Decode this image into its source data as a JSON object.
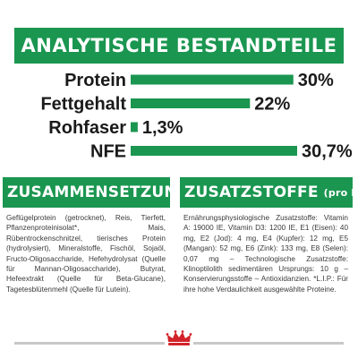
{
  "header": {
    "title": "ANALYTISCHE BESTANDTEILE"
  },
  "chart_data": {
    "type": "bar",
    "orientation": "horizontal",
    "categories": [
      "Protein",
      "Fettgehalt",
      "Rohfaser",
      "NFE"
    ],
    "values": [
      30,
      22,
      1.3,
      30.7
    ],
    "value_labels": [
      "30%",
      "22%",
      "1,3%",
      "30,7%"
    ],
    "unit": "%",
    "bar_color": "#1a9650",
    "xlim": [
      0,
      30.7
    ],
    "grid": false,
    "legend": "none"
  },
  "composition": {
    "title": "ZUSAMMENSETZUNG",
    "text": "Geflügelprotein (getrocknet), Reis, Tierfett, Pflanzenproteinisolat*, Mais, Rübentrockenschnitzel, tierisches Protein (hydrolysiert), Mineralstoffe, Fischöl, Sojaöl, Fructo-Oligosaccharide, Hefehydrolysat (Quelle für Mannan-Oligosaccharide), Butyrat, Hefeextrakt (Quelle für Beta-Glucane), Tagetesblütenmehl (Quelle für Lutein)."
  },
  "additives": {
    "title": "ZUSATZSTOFFE",
    "unit": "(pro kg)",
    "text": "Ernährungsphysiologische Zusatzstoffe: Vitamin A: 19000 IE, Vitamin D3: 1200 IE, E1 (Eisen): 40 mg, E2 (Jod): 4 mg, E4 (Kupfer): 12 mg, E5 (Mangan): 52 mg, E6 (Zink): 133 mg, E8 (Selen): 0,07 mg – Technologische Zusatzstoffe: Klinoptilolith sedimentären Ursprungs: 10 g – Konservierungsstoffe – Antioxidanzien. *L.I.P.: Für ihre hohe Verdaulichkeit ausgewählte Proteine."
  },
  "colors": {
    "brand_green": "#1a9650",
    "logo_red": "#d2232a"
  },
  "logo": {
    "name": "royal-canin-crown-icon"
  }
}
